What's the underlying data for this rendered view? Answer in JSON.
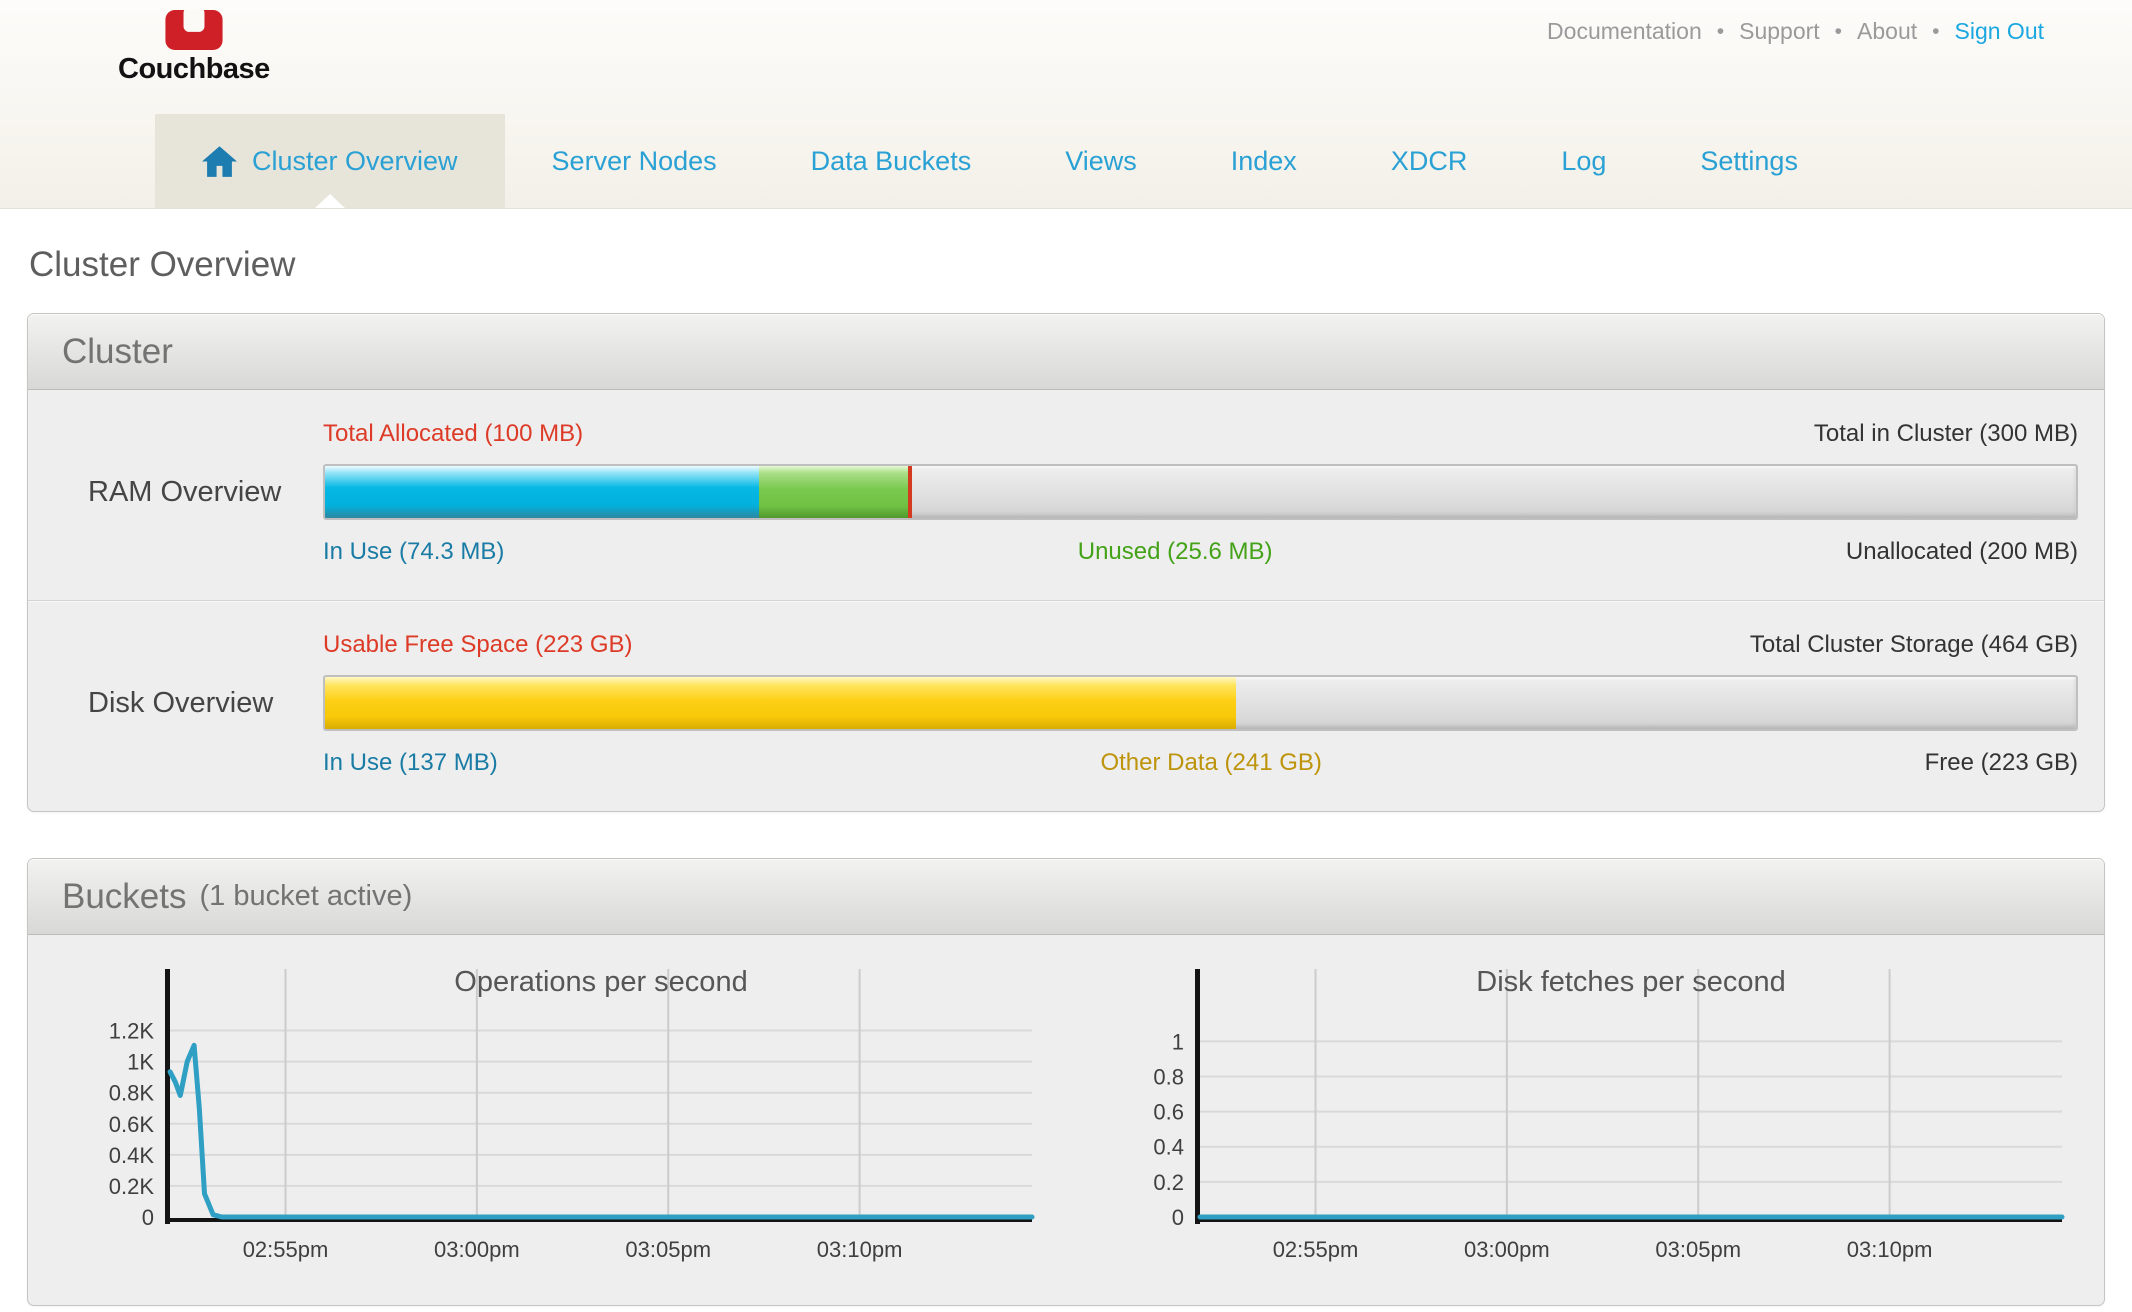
{
  "header": {
    "logo_text": "Couchbase",
    "links": [
      {
        "label": "Documentation",
        "highlight": false
      },
      {
        "label": "Support",
        "highlight": false
      },
      {
        "label": "About",
        "highlight": false
      },
      {
        "label": "Sign Out",
        "highlight": true
      }
    ]
  },
  "nav": {
    "tabs": [
      {
        "label": "Cluster Overview",
        "active": true
      },
      {
        "label": "Server Nodes",
        "active": false
      },
      {
        "label": "Data Buckets",
        "active": false
      },
      {
        "label": "Views",
        "active": false
      },
      {
        "label": "Index",
        "active": false
      },
      {
        "label": "XDCR",
        "active": false
      },
      {
        "label": "Log",
        "active": false
      },
      {
        "label": "Settings",
        "active": false
      }
    ]
  },
  "page_title": "Cluster Overview",
  "cluster_panel": {
    "title": "Cluster",
    "ram": {
      "row_label": "RAM Overview",
      "top_left_label": "Total Allocated (100 MB)",
      "top_right_label": "Total in Cluster (300 MB)",
      "bottom_left_label": "In Use (74.3 MB)",
      "bottom_mid_label": "Unused (25.6 MB)",
      "bottom_right_label": "Unallocated (200 MB)",
      "segments": {
        "in_use_pct": 24.8,
        "unused_pct": 8.5,
        "allocated_marker_pct": 33.3
      }
    },
    "disk": {
      "row_label": "Disk Overview",
      "top_left_label": "Usable Free Space (223 GB)",
      "top_right_label": "Total Cluster Storage (464 GB)",
      "bottom_left_label": "In Use (137 MB)",
      "bottom_mid_label": "Other Data (241 GB)",
      "bottom_right_label": "Free (223 GB)",
      "segments": {
        "used_pct": 52
      }
    }
  },
  "buckets_panel": {
    "title": "Buckets",
    "subtitle": "(1 bucket active)"
  },
  "chart_data": [
    {
      "type": "line",
      "title": "Operations per second",
      "x_tick_labels": [
        "02:55pm",
        "03:00pm",
        "03:05pm",
        "03:10pm"
      ],
      "x_tick_pos": [
        0.134,
        0.356,
        0.578,
        0.8
      ],
      "y_ticks": [
        [
          0,
          "0"
        ],
        [
          200,
          "0.2K"
        ],
        [
          400,
          "0.4K"
        ],
        [
          600,
          "0.6K"
        ],
        [
          800,
          "0.8K"
        ],
        [
          1000,
          "1K"
        ],
        [
          1200,
          "1.2K"
        ]
      ],
      "ylim": [
        0,
        1300
      ],
      "grid": true,
      "legend": "none",
      "series": [
        {
          "name": "ops per second",
          "color": "#2f9fc3",
          "points": [
            [
              0,
              935
            ],
            [
              0.006,
              870
            ],
            [
              0.012,
              782
            ],
            [
              0.02,
              1000
            ],
            [
              0.028,
              1105
            ],
            [
              0.034,
              700
            ],
            [
              0.04,
              150
            ],
            [
              0.05,
              15
            ],
            [
              0.06,
              0
            ],
            [
              1,
              0
            ]
          ]
        }
      ]
    },
    {
      "type": "line",
      "title": "Disk fetches per second",
      "x_tick_labels": [
        "02:55pm",
        "03:00pm",
        "03:05pm",
        "03:10pm"
      ],
      "x_tick_pos": [
        0.134,
        0.356,
        0.578,
        0.8
      ],
      "y_ticks": [
        [
          0,
          "0"
        ],
        [
          0.2,
          "0.2"
        ],
        [
          0.4,
          "0.4"
        ],
        [
          0.6,
          "0.6"
        ],
        [
          0.8,
          "0.8"
        ],
        [
          1,
          "1"
        ]
      ],
      "ylim": [
        0,
        1.15
      ],
      "grid": true,
      "legend": "none",
      "series": [
        {
          "name": "disk fetches per second",
          "color": "#2f9fc3",
          "points": [
            [
              0,
              0
            ],
            [
              1,
              0
            ]
          ]
        }
      ]
    }
  ],
  "colors": {
    "accent_blue": "#1ba7e0",
    "nav_blue": "#2aa1d4",
    "label_red": "#dd3b27",
    "label_blue": "#1a7ca5",
    "label_green": "#43a217",
    "label_amber": "#bd940b",
    "bar_blue": "#06b8e4",
    "bar_green": "#79c94e",
    "bar_yellow": "#fdd017",
    "marker_red": "#d43a20",
    "chart_line": "#2f9fc3",
    "logo_red": "#cf2027"
  }
}
